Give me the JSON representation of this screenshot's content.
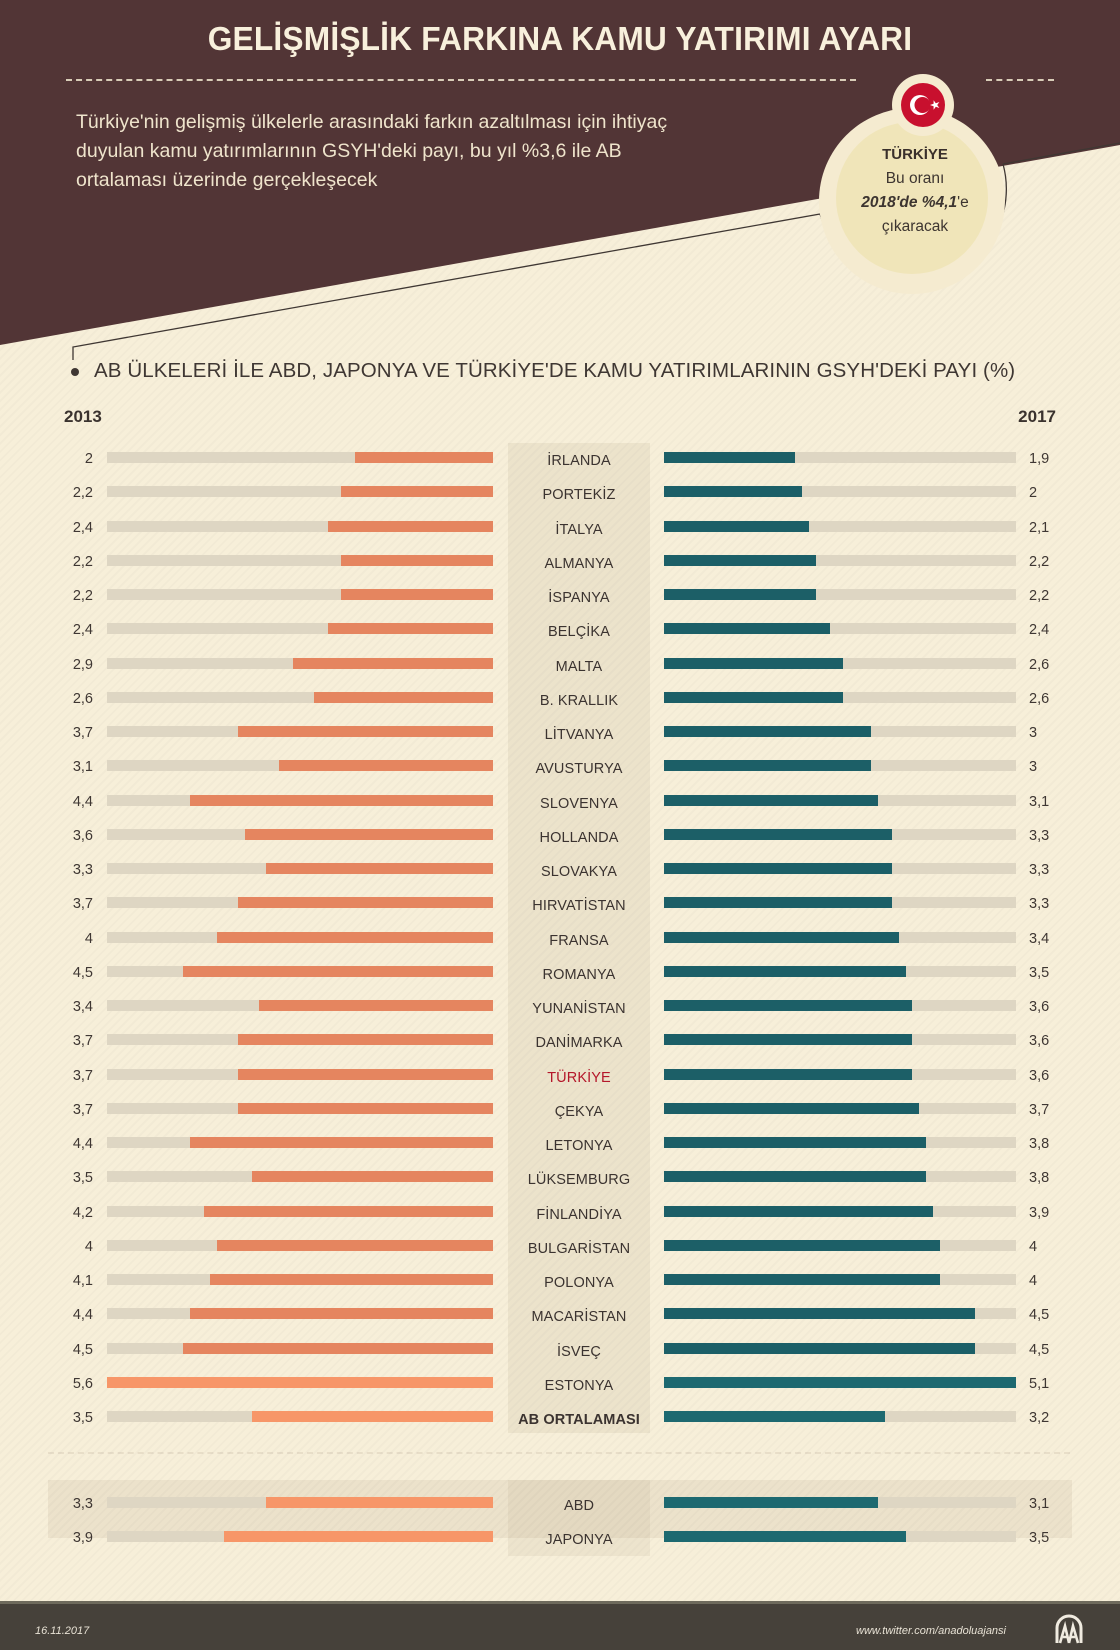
{
  "header": {
    "title": "GELİŞMİŞLİK FARKINA KAMU YATIRIMI AYARI",
    "subtitle": "Türkiye'nin gelişmiş ülkelerle arasındaki farkın azaltılması için ihtiyaç duyulan kamu yatırımlarının GSYH'deki payı, bu yıl %3,6 ile AB ortalaması üzerinde gerçekleşecek",
    "colors": {
      "header_bg": "#523536",
      "background": "#f7efd9"
    }
  },
  "badge": {
    "flag_icon": "turkey-flag",
    "country": "TÜRKİYE",
    "line1": "Bu oranı",
    "line2_emphasis": "2018'de %4,1",
    "line2_suffix": "'e",
    "line3": "çıkaracak"
  },
  "chart_data": {
    "type": "bar",
    "orientation": "horizontal-butterfly",
    "title": "AB ÜLKELERİ İLE ABD, JAPONYA VE TÜRKİYE'DE KAMU YATIRIMLARININ GSYH'DEKİ PAYI (%)",
    "unit": "%",
    "xlim": [
      0,
      5.6
    ],
    "decimal_separator": ",",
    "series": [
      {
        "name": "2013",
        "side": "left",
        "color": "#e5855f"
      },
      {
        "name": "2017",
        "side": "right",
        "color": "#1c5f67"
      }
    ],
    "highlight_color": "#b4172a",
    "categories": [
      "İRLANDA",
      "PORTEKİZ",
      "İTALYA",
      "ALMANYA",
      "İSPANYA",
      "BELÇİKA",
      "MALTA",
      "B. KRALLIK",
      "LİTVANYA",
      "AVUSTURYA",
      "SLOVENYA",
      "HOLLANDA",
      "SLOVAKYA",
      "HIRVATİSTAN",
      "FRANSA",
      "ROMANYA",
      "YUNANİSTAN",
      "DANİMARKA",
      "TÜRKİYE",
      "ÇEKYA",
      "LETONYA",
      "LÜKSEMBURG",
      "FİNLANDİYA",
      "BULGARİSTAN",
      "POLONYA",
      "MACARİSTAN",
      "İSVEÇ",
      "ESTONYA",
      "AB ORTALAMASI"
    ],
    "values_2013": [
      2,
      2.2,
      2.4,
      2.2,
      2.2,
      2.4,
      2.9,
      2.6,
      3.7,
      3.1,
      4.4,
      3.6,
      3.3,
      3.7,
      4,
      4.5,
      3.4,
      3.7,
      3.7,
      3.7,
      4.4,
      3.5,
      4.2,
      4,
      4.1,
      4.4,
      4.5,
      5.6,
      3.5
    ],
    "values_2017": [
      1.9,
      2,
      2.1,
      2.2,
      2.2,
      2.4,
      2.6,
      2.6,
      3,
      3,
      3.1,
      3.3,
      3.3,
      3.3,
      3.4,
      3.5,
      3.6,
      3.6,
      3.6,
      3.7,
      3.8,
      3.8,
      3.9,
      4,
      4,
      4.5,
      4.5,
      5.1,
      3.2
    ],
    "highlighted_category": "TÜRKİYE",
    "bold_category": "AB ORTALAMASI",
    "other_categories": [
      "ABD",
      "JAPONYA"
    ],
    "other_values_2013": [
      3.3,
      3.9
    ],
    "other_values_2017": [
      3.1,
      3.5
    ]
  },
  "labels": {
    "year_left": "2013",
    "year_right": "2017"
  },
  "footer": {
    "date": "16.11.2017",
    "url": "www.twitter.com/anadoluajansi",
    "logo_icon": "anadolu-ajansi-logo"
  }
}
